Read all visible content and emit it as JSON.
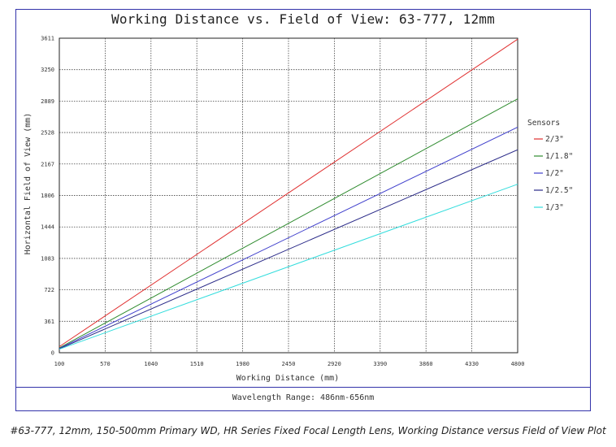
{
  "chart_data": {
    "type": "line",
    "title": "Working Distance vs. Field of View: 63-777, 12mm",
    "xlabel": "Working Distance (mm)",
    "ylabel": "Horizontal Field of View (mm)",
    "xlim": [
      100,
      4800
    ],
    "ylim": [
      0,
      3611
    ],
    "x_ticks": [
      "100",
      "570",
      "1040",
      "1510",
      "1980",
      "2450",
      "2920",
      "3390",
      "3860",
      "4330",
      "4800"
    ],
    "y_ticks": [
      "0",
      "361",
      "722",
      "1083",
      "1444",
      "1806",
      "2167",
      "2528",
      "2889",
      "3250",
      "3611"
    ],
    "grid": true,
    "legend_title": "Sensors",
    "legend_position": "right",
    "series": [
      {
        "name": "2/3\"",
        "color": "#e03030",
        "x": [
          100,
          4800
        ],
        "y": [
          70,
          3600
        ]
      },
      {
        "name": "1/1.8\"",
        "color": "#2e8b2e",
        "x": [
          100,
          4800
        ],
        "y": [
          55,
          2915
        ]
      },
      {
        "name": "1/2\"",
        "color": "#4040cc",
        "x": [
          100,
          4800
        ],
        "y": [
          50,
          2590
        ]
      },
      {
        "name": "1/2.5\"",
        "color": "#2a2a88",
        "x": [
          100,
          4800
        ],
        "y": [
          45,
          2330
        ]
      },
      {
        "name": "1/3\"",
        "color": "#33dddd",
        "x": [
          100,
          4800
        ],
        "y": [
          40,
          1935
        ]
      }
    ]
  },
  "footer": {
    "wavelength": "Wavelength Range: 486nm-656nm"
  },
  "caption": "#63-777, 12mm, 150-500mm Primary WD, HR Series Fixed Focal Length Lens, Working Distance versus Field of View Plot"
}
